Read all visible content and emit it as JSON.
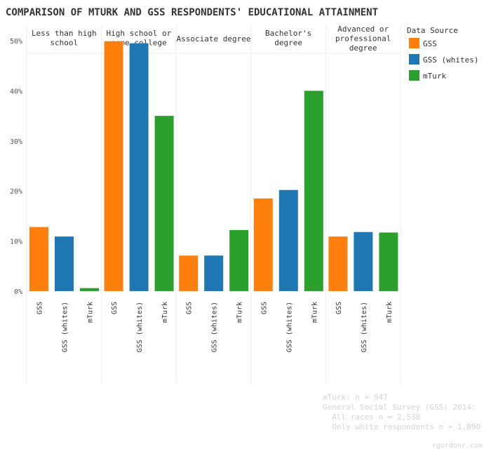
{
  "chart_data": {
    "type": "bar",
    "title": "COMPARISON OF MTURK AND GSS RESPONDENTS' EDUCATIONAL ATTAINMENT",
    "categories": [
      [
        "Less than high",
        "school"
      ],
      [
        "High school or",
        "some college"
      ],
      [
        "Associate degree"
      ],
      [
        "Bachelor's",
        "degree"
      ],
      [
        "Advanced or",
        "professional",
        "degree"
      ]
    ],
    "series": [
      {
        "name": "GSS",
        "color": "#ff7f0e",
        "values": [
          12.8,
          49.9,
          7.1,
          18.5,
          10.9
        ]
      },
      {
        "name": "GSS (whites)",
        "color": "#1f77b4",
        "values": [
          10.9,
          49.5,
          7.1,
          20.2,
          11.8
        ]
      },
      {
        "name": "mTurk",
        "color": "#2ca02c",
        "values": [
          0.6,
          35.0,
          12.2,
          40.0,
          11.7
        ]
      }
    ],
    "ylim": [
      -1,
      54
    ],
    "yticks": [
      0,
      10,
      20,
      30,
      40,
      50
    ],
    "ytick_labels": [
      "0%",
      "10%",
      "20%",
      "30%",
      "40%",
      "50%"
    ],
    "xlabel": "",
    "ylabel": "",
    "legend": {
      "title": "Data Source",
      "position": "top-right"
    },
    "grid": false
  },
  "notes": [
    "mTurk: n = 947",
    "General Social Survey (GSS) 2014:",
    "  All races n = 2,538",
    "  Only white respondents n = 1,890"
  ],
  "credit": "rgordonr.com"
}
